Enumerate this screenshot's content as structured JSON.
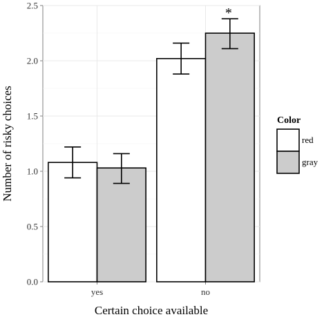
{
  "chart_data": {
    "type": "bar",
    "xlabel": "Certain choice available",
    "ylabel": "Number of risky choices",
    "categories": [
      "yes",
      "no"
    ],
    "ylim": [
      0,
      2.5
    ],
    "yticks": [
      "0.0",
      "0.5",
      "1.0",
      "1.5",
      "2.0",
      "2.5"
    ],
    "grid": true,
    "legend_position": "right",
    "legend_title": "Color",
    "series": [
      {
        "name": "red",
        "color": "#ffffff",
        "values": [
          1.08,
          2.02
        ],
        "err_low": [
          0.94,
          1.88
        ],
        "err_high": [
          1.22,
          2.16
        ]
      },
      {
        "name": "gray",
        "color": "#cccccc",
        "values": [
          1.03,
          2.25
        ],
        "err_low": [
          0.89,
          2.11
        ],
        "err_high": [
          1.16,
          2.38
        ]
      }
    ],
    "annotations": [
      {
        "text": "*",
        "category": "no",
        "series": "gray"
      }
    ]
  }
}
